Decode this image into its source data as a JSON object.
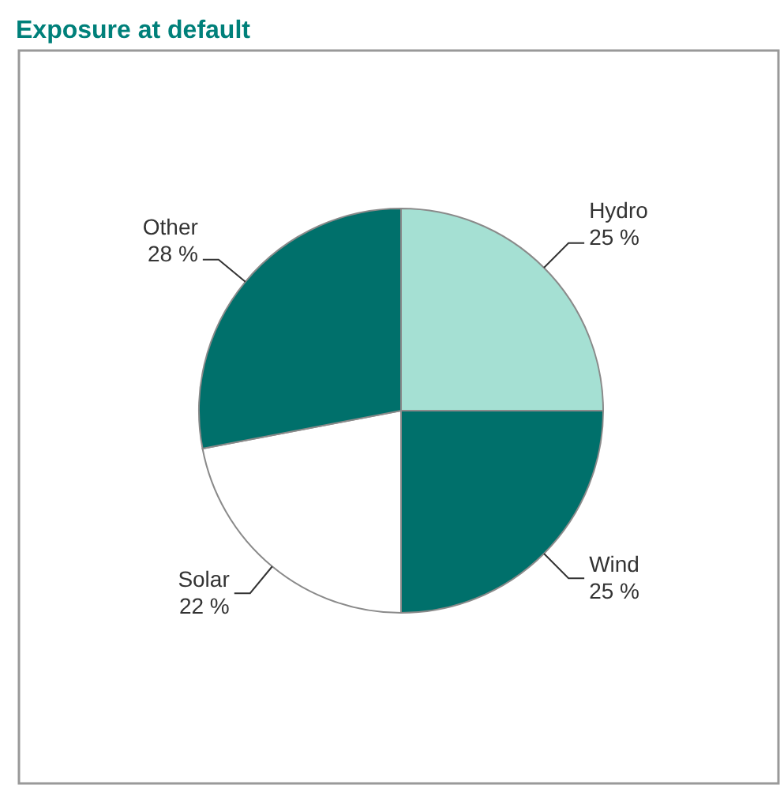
{
  "chart_data": {
    "type": "pie",
    "title": "Exposure at default",
    "categories": [
      "Hydro",
      "Wind",
      "Solar",
      "Other"
    ],
    "values": [
      25,
      25,
      22,
      28
    ],
    "value_labels": [
      "25 %",
      "25 %",
      "22 %",
      "28 %"
    ],
    "colors": [
      "#a5e0d3",
      "#00706b",
      "#ffffff",
      "#00706b"
    ]
  }
}
